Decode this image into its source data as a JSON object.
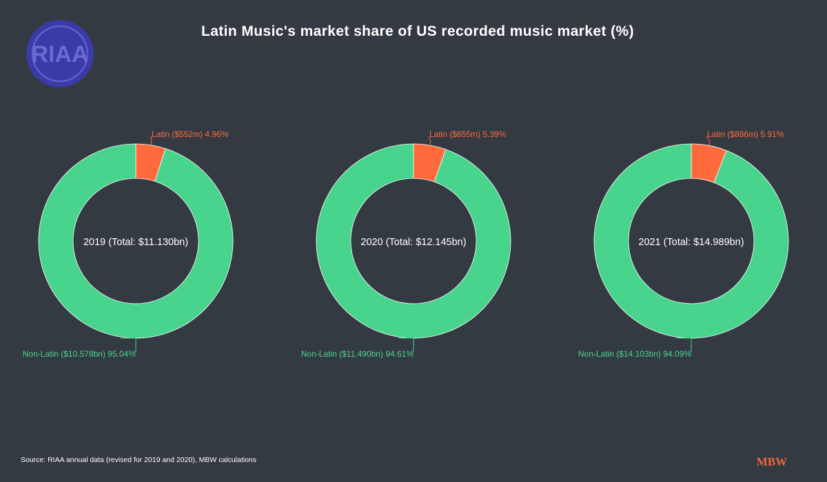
{
  "title": "Latin Music's market share of US recorded music market (%)",
  "source": "Source: RIAA annual data (revised for 2019 and 2020), MBW calculations",
  "logos": {
    "riaa": "RIAA",
    "mbw": "MBW",
    "riaa_color": "#3a3aa8",
    "mbw_color": "#f0683b"
  },
  "colors": {
    "latin": "#ff6b3d",
    "non_latin": "#48d48d",
    "background": "#343a42"
  },
  "chart_data": [
    {
      "type": "pie",
      "center_label": "2019 (Total: $11.130bn)",
      "slices": [
        {
          "name": "Latin",
          "value": 4.96,
          "label": "Latin ($552m) 4.96%"
        },
        {
          "name": "Non-Latin",
          "value": 95.04,
          "label": "Non-Latin ($10.578bn) 95.04%"
        }
      ]
    },
    {
      "type": "pie",
      "center_label": "2020 (Total: $12.145bn)",
      "slices": [
        {
          "name": "Latin",
          "value": 5.39,
          "label": "Latin ($655m) 5.39%"
        },
        {
          "name": "Non-Latin",
          "value": 94.61,
          "label": "Non-Latin ($11.490bn) 94.61%"
        }
      ]
    },
    {
      "type": "pie",
      "center_label": "2021 (Total: $14.989bn)",
      "slices": [
        {
          "name": "Latin",
          "value": 5.91,
          "label": "Latin ($886m) 5.91%"
        },
        {
          "name": "Non-Latin",
          "value": 94.09,
          "label": "Non-Latin ($14.103bn) 94.09%"
        }
      ]
    }
  ]
}
